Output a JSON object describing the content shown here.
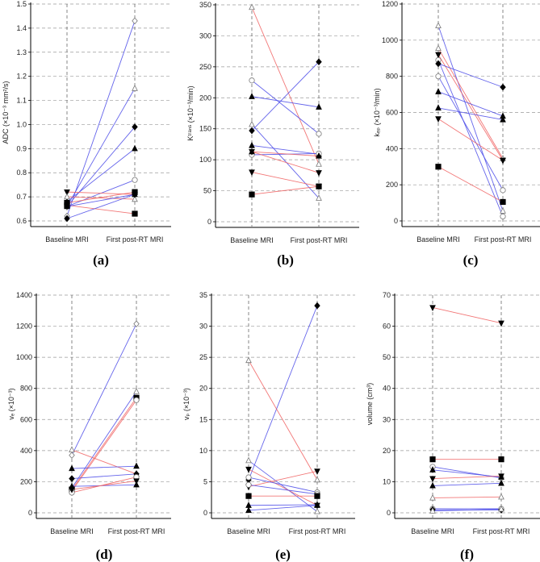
{
  "colors": {
    "improve": "#4a4ae8",
    "worsen": "#f06060",
    "grid": "#9a9a9a"
  },
  "chart_data": [
    {
      "type": "line",
      "caption": "(a)",
      "ylabel": "ADC (×10⁻³ mm²/s)",
      "categories": [
        "Baseline MRI",
        "First post-RT MRI"
      ],
      "ylim": [
        0.6,
        1.5
      ],
      "yticks": [
        0.6,
        0.7,
        0.8,
        0.9,
        1.0,
        1.1,
        1.2,
        1.3,
        1.4,
        1.5
      ],
      "tick_decimals": 1,
      "series": [
        {
          "color": "blue",
          "marker": "diamond",
          "filled": false,
          "values": [
            0.62,
            1.43
          ]
        },
        {
          "color": "blue",
          "marker": "triangle-up",
          "filled": false,
          "values": [
            0.66,
            1.15
          ]
        },
        {
          "color": "blue",
          "marker": "diamond",
          "filled": true,
          "values": [
            0.66,
            0.99
          ]
        },
        {
          "color": "blue",
          "marker": "triangle-up",
          "filled": true,
          "values": [
            0.68,
            0.9
          ]
        },
        {
          "color": "blue",
          "marker": "circle",
          "filled": false,
          "values": [
            0.66,
            0.77
          ]
        },
        {
          "color": "red",
          "marker": "triangle-down",
          "filled": true,
          "values": [
            0.72,
            0.71
          ]
        },
        {
          "color": "red",
          "marker": "triangle-up",
          "filled": false,
          "values": [
            0.7,
            0.69
          ]
        },
        {
          "color": "red",
          "marker": "square",
          "filled": true,
          "values": [
            0.665,
            0.63
          ]
        },
        {
          "color": "blue",
          "marker": "diamond",
          "filled": true,
          "values": [
            0.61,
            0.71
          ]
        },
        {
          "color": "red",
          "marker": "square",
          "filled": true,
          "values": [
            0.675,
            0.72
          ]
        },
        {
          "color": "blue",
          "marker": "triangle-up",
          "filled": true,
          "values": [
            0.66,
            0.71
          ]
        }
      ]
    },
    {
      "type": "line",
      "caption": "(b)",
      "ylabel": "Kᵗʳᵃⁿˢ (×10⁻³/min)",
      "categories": [
        "Baseline MRI",
        "First post-RT MRI"
      ],
      "ylim": [
        0,
        350
      ],
      "yticks": [
        0,
        50,
        100,
        150,
        200,
        250,
        300,
        350
      ],
      "tick_decimals": 0,
      "series": [
        {
          "color": "red",
          "marker": "triangle-up",
          "filled": false,
          "values": [
            346,
            93
          ]
        },
        {
          "color": "blue",
          "marker": "diamond",
          "filled": true,
          "values": [
            147,
            258
          ]
        },
        {
          "color": "blue",
          "marker": "circle",
          "filled": false,
          "values": [
            228,
            142
          ]
        },
        {
          "color": "blue",
          "marker": "triangle-up",
          "filled": true,
          "values": [
            202,
            185
          ]
        },
        {
          "color": "blue",
          "marker": "triangle-up",
          "filled": false,
          "values": [
            157,
            38
          ]
        },
        {
          "color": "blue",
          "marker": "triangle-up",
          "filled": true,
          "values": [
            123,
            109
          ]
        },
        {
          "color": "blue",
          "marker": "circle",
          "filled": false,
          "values": [
            108,
            110
          ]
        },
        {
          "color": "red",
          "marker": "triangle-down",
          "filled": true,
          "values": [
            113,
            79
          ]
        },
        {
          "color": "red",
          "marker": "triangle-down",
          "filled": true,
          "values": [
            80,
            57
          ]
        },
        {
          "color": "red",
          "marker": "square",
          "filled": true,
          "values": [
            44,
            57
          ]
        },
        {
          "color": "red",
          "marker": "triangle-up",
          "filled": true,
          "values": [
            113,
            106
          ]
        }
      ]
    },
    {
      "type": "line",
      "caption": "(c)",
      "ylabel": "kₑₚ (×10⁻³/min)",
      "categories": [
        "Baseline MRI",
        "First post-RT MRI"
      ],
      "ylim": [
        0,
        1200
      ],
      "yticks": [
        0,
        200,
        400,
        600,
        800,
        1000,
        1200
      ],
      "tick_decimals": 0,
      "series": [
        {
          "color": "blue",
          "marker": "triangle-up",
          "filled": false,
          "values": [
            1080,
            55
          ]
        },
        {
          "color": "red",
          "marker": "triangle-up",
          "filled": false,
          "values": [
            955,
            345
          ]
        },
        {
          "color": "red",
          "marker": "triangle-down",
          "filled": true,
          "values": [
            920,
            335
          ]
        },
        {
          "color": "blue",
          "marker": "circle",
          "filled": false,
          "values": [
            890,
            25
          ]
        },
        {
          "color": "blue",
          "marker": "diamond",
          "filled": true,
          "values": [
            870,
            740
          ]
        },
        {
          "color": "blue",
          "marker": "circle",
          "filled": false,
          "values": [
            800,
            170
          ]
        },
        {
          "color": "blue",
          "marker": "triangle-up",
          "filled": true,
          "values": [
            715,
            580
          ]
        },
        {
          "color": "blue",
          "marker": "triangle-up",
          "filled": true,
          "values": [
            625,
            560
          ]
        },
        {
          "color": "red",
          "marker": "triangle-down",
          "filled": true,
          "values": [
            565,
            335
          ]
        },
        {
          "color": "red",
          "marker": "square",
          "filled": true,
          "values": [
            300,
            105
          ]
        }
      ]
    },
    {
      "type": "line",
      "caption": "(d)",
      "ylabel": "vₑ (×10⁻³)",
      "categories": [
        "Baseline MRI",
        "First post-RT MRI"
      ],
      "ylim": [
        0,
        1400
      ],
      "yticks": [
        0,
        200,
        400,
        600,
        800,
        1000,
        1200,
        1400
      ],
      "tick_decimals": 0,
      "series": [
        {
          "color": "blue",
          "marker": "diamond",
          "filled": false,
          "values": [
            370,
            1215
          ]
        },
        {
          "color": "blue",
          "marker": "triangle-up",
          "filled": false,
          "values": [
            160,
            780
          ]
        },
        {
          "color": "red",
          "marker": "square",
          "filled": true,
          "values": [
            150,
            740
          ]
        },
        {
          "color": "red",
          "marker": "circle",
          "filled": false,
          "values": [
            140,
            725
          ]
        },
        {
          "color": "red",
          "marker": "triangle-up",
          "filled": false,
          "values": [
            405,
            250
          ]
        },
        {
          "color": "blue",
          "marker": "triangle-up",
          "filled": true,
          "values": [
            285,
            300
          ]
        },
        {
          "color": "blue",
          "marker": "diamond",
          "filled": true,
          "values": [
            220,
            250
          ]
        },
        {
          "color": "blue",
          "marker": "triangle-up",
          "filled": true,
          "values": [
            170,
            180
          ]
        },
        {
          "color": "red",
          "marker": "circle",
          "filled": false,
          "values": [
            130,
            230
          ]
        },
        {
          "color": "red",
          "marker": "triangle-down",
          "filled": true,
          "values": [
            150,
            205
          ]
        }
      ]
    },
    {
      "type": "line",
      "caption": "(e)",
      "ylabel": "vₚ (×10⁻³)",
      "categories": [
        "Baseline MRI",
        "First post-RT MRI"
      ],
      "ylim": [
        0,
        35
      ],
      "yticks": [
        0,
        5,
        10,
        15,
        20,
        25,
        30,
        35
      ],
      "tick_decimals": 0,
      "series": [
        {
          "color": "blue",
          "marker": "diamond",
          "filled": true,
          "values": [
            5.3,
            33.3
          ]
        },
        {
          "color": "red",
          "marker": "triangle-up",
          "filled": false,
          "values": [
            24.5,
            5.3
          ]
        },
        {
          "color": "blue",
          "marker": "triangle-up",
          "filled": false,
          "values": [
            8.4,
            0.2
          ]
        },
        {
          "color": "red",
          "marker": "triangle-down",
          "filled": true,
          "values": [
            7.0,
            1.2
          ]
        },
        {
          "color": "red",
          "marker": "triangle-down",
          "filled": true,
          "values": [
            4.2,
            6.7
          ]
        },
        {
          "color": "blue",
          "marker": "circle",
          "filled": false,
          "values": [
            5.7,
            3.3
          ]
        },
        {
          "color": "blue",
          "marker": "circle",
          "filled": false,
          "values": [
            4.5,
            3.0
          ]
        },
        {
          "color": "red",
          "marker": "square",
          "filled": true,
          "values": [
            2.7,
            2.7
          ]
        },
        {
          "color": "blue",
          "marker": "triangle-up",
          "filled": true,
          "values": [
            1.2,
            1.3
          ]
        },
        {
          "color": "blue",
          "marker": "triangle-up",
          "filled": true,
          "values": [
            0.4,
            1.2
          ]
        }
      ]
    },
    {
      "type": "line",
      "caption": "(f)",
      "ylabel": "volume (cm³)",
      "categories": [
        "Baseline MRI",
        "First post-RT MRI"
      ],
      "ylim": [
        0,
        70
      ],
      "yticks": [
        0,
        10,
        20,
        30,
        40,
        50,
        60,
        70
      ],
      "tick_decimals": 0,
      "series": [
        {
          "color": "red",
          "marker": "triangle-down",
          "filled": true,
          "values": [
            66,
            61
          ]
        },
        {
          "color": "red",
          "marker": "square",
          "filled": true,
          "values": [
            17.2,
            17.2
          ]
        },
        {
          "color": "blue",
          "marker": "circle",
          "filled": false,
          "values": [
            14.8,
            11.2
          ]
        },
        {
          "color": "blue",
          "marker": "triangle-up",
          "filled": true,
          "values": [
            13.8,
            11.5
          ]
        },
        {
          "color": "red",
          "marker": "triangle-down",
          "filled": true,
          "values": [
            11.0,
            11.8
          ]
        },
        {
          "color": "blue",
          "marker": "triangle-up",
          "filled": true,
          "values": [
            8.7,
            9.5
          ]
        },
        {
          "color": "red",
          "marker": "triangle-up",
          "filled": false,
          "values": [
            4.8,
            5.1
          ]
        },
        {
          "color": "blue",
          "marker": "circle",
          "filled": false,
          "values": [
            1.3,
            1.3
          ]
        },
        {
          "color": "blue",
          "marker": "diamond",
          "filled": true,
          "values": [
            1.0,
            0.9
          ]
        },
        {
          "color": "blue",
          "marker": "triangle-up",
          "filled": false,
          "values": [
            0.6,
            1.2
          ]
        }
      ]
    }
  ]
}
